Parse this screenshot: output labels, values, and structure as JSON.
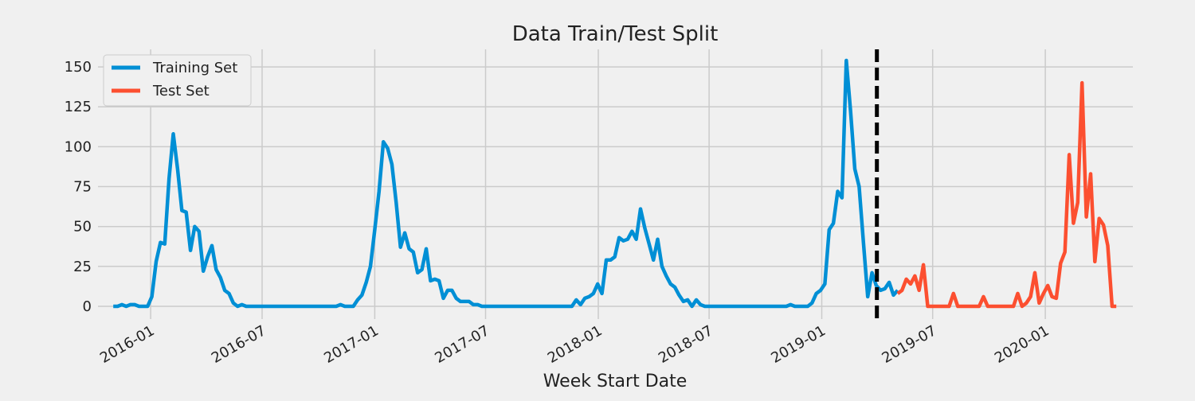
{
  "chart_data": {
    "type": "line",
    "title": "Data Train/Test Split",
    "xlabel": "Week Start Date",
    "ylabel": "",
    "x_type": "date",
    "xlim": [
      "2015-10-07",
      "2020-05-23"
    ],
    "ylim": [
      -8,
      161
    ],
    "grid": true,
    "legend_position": "top-left",
    "x_ticks": [
      {
        "date": "2016-01-01",
        "label": "2016-01"
      },
      {
        "date": "2016-07-01",
        "label": "2016-07"
      },
      {
        "date": "2017-01-01",
        "label": "2017-01"
      },
      {
        "date": "2017-07-01",
        "label": "2017-07"
      },
      {
        "date": "2018-01-01",
        "label": "2018-01"
      },
      {
        "date": "2018-07-01",
        "label": "2018-07"
      },
      {
        "date": "2019-01-01",
        "label": "2019-01"
      },
      {
        "date": "2019-07-01",
        "label": "2019-07"
      },
      {
        "date": "2020-01-01",
        "label": "2020-01"
      }
    ],
    "y_ticks": [
      0,
      25,
      50,
      75,
      100,
      125,
      150
    ],
    "split_date": "2019-04-01",
    "series": [
      {
        "name": "Training Set",
        "color": "#008fd5",
        "points": [
          [
            "2015-11-01",
            0
          ],
          [
            "2015-11-08",
            0
          ],
          [
            "2015-11-15",
            1
          ],
          [
            "2015-11-22",
            0
          ],
          [
            "2015-11-29",
            1
          ],
          [
            "2015-12-06",
            1
          ],
          [
            "2015-12-13",
            0
          ],
          [
            "2015-12-20",
            0
          ],
          [
            "2015-12-27",
            0
          ],
          [
            "2016-01-03",
            6
          ],
          [
            "2016-01-10",
            28
          ],
          [
            "2016-01-17",
            40
          ],
          [
            "2016-01-24",
            39
          ],
          [
            "2016-01-31",
            80
          ],
          [
            "2016-02-07",
            108
          ],
          [
            "2016-02-14",
            86
          ],
          [
            "2016-02-21",
            60
          ],
          [
            "2016-02-28",
            59
          ],
          [
            "2016-03-06",
            35
          ],
          [
            "2016-03-13",
            50
          ],
          [
            "2016-03-20",
            47
          ],
          [
            "2016-03-27",
            22
          ],
          [
            "2016-04-03",
            31
          ],
          [
            "2016-04-10",
            38
          ],
          [
            "2016-04-17",
            23
          ],
          [
            "2016-04-24",
            18
          ],
          [
            "2016-05-01",
            10
          ],
          [
            "2016-05-08",
            8
          ],
          [
            "2016-05-15",
            2
          ],
          [
            "2016-05-22",
            0
          ],
          [
            "2016-05-29",
            1
          ],
          [
            "2016-06-05",
            0
          ],
          [
            "2016-06-12",
            0
          ],
          [
            "2016-07-17",
            0
          ],
          [
            "2016-08-21",
            0
          ],
          [
            "2016-09-25",
            0
          ],
          [
            "2016-10-30",
            0
          ],
          [
            "2016-11-06",
            1
          ],
          [
            "2016-11-13",
            0
          ],
          [
            "2016-11-20",
            0
          ],
          [
            "2016-11-27",
            0
          ],
          [
            "2016-12-04",
            4
          ],
          [
            "2016-12-11",
            7
          ],
          [
            "2016-12-18",
            15
          ],
          [
            "2016-12-25",
            25
          ],
          [
            "2017-01-01",
            48
          ],
          [
            "2017-01-08",
            72
          ],
          [
            "2017-01-15",
            103
          ],
          [
            "2017-01-22",
            99
          ],
          [
            "2017-01-29",
            89
          ],
          [
            "2017-02-05",
            65
          ],
          [
            "2017-02-12",
            37
          ],
          [
            "2017-02-19",
            46
          ],
          [
            "2017-02-26",
            36
          ],
          [
            "2017-03-05",
            34
          ],
          [
            "2017-03-12",
            21
          ],
          [
            "2017-03-19",
            23
          ],
          [
            "2017-03-26",
            36
          ],
          [
            "2017-04-02",
            16
          ],
          [
            "2017-04-09",
            17
          ],
          [
            "2017-04-16",
            16
          ],
          [
            "2017-04-23",
            5
          ],
          [
            "2017-04-30",
            10
          ],
          [
            "2017-05-07",
            10
          ],
          [
            "2017-05-14",
            5
          ],
          [
            "2017-05-21",
            3
          ],
          [
            "2017-05-28",
            3
          ],
          [
            "2017-06-04",
            3
          ],
          [
            "2017-06-11",
            1
          ],
          [
            "2017-06-18",
            1
          ],
          [
            "2017-06-25",
            0
          ],
          [
            "2017-07-30",
            0
          ],
          [
            "2017-09-03",
            0
          ],
          [
            "2017-10-08",
            0
          ],
          [
            "2017-11-05",
            0
          ],
          [
            "2017-11-19",
            0
          ],
          [
            "2017-11-26",
            4
          ],
          [
            "2017-12-03",
            1
          ],
          [
            "2017-12-10",
            5
          ],
          [
            "2017-12-17",
            6
          ],
          [
            "2017-12-24",
            8
          ],
          [
            "2017-12-31",
            14
          ],
          [
            "2018-01-07",
            8
          ],
          [
            "2018-01-14",
            29
          ],
          [
            "2018-01-21",
            29
          ],
          [
            "2018-01-28",
            31
          ],
          [
            "2018-02-04",
            43
          ],
          [
            "2018-02-11",
            41
          ],
          [
            "2018-02-18",
            42
          ],
          [
            "2018-02-25",
            47
          ],
          [
            "2018-03-04",
            42
          ],
          [
            "2018-03-11",
            61
          ],
          [
            "2018-03-18",
            49
          ],
          [
            "2018-03-25",
            39
          ],
          [
            "2018-04-01",
            29
          ],
          [
            "2018-04-08",
            42
          ],
          [
            "2018-04-15",
            25
          ],
          [
            "2018-04-22",
            19
          ],
          [
            "2018-04-29",
            14
          ],
          [
            "2018-05-06",
            12
          ],
          [
            "2018-05-13",
            7
          ],
          [
            "2018-05-20",
            3
          ],
          [
            "2018-05-27",
            4
          ],
          [
            "2018-06-03",
            0
          ],
          [
            "2018-06-10",
            4
          ],
          [
            "2018-06-17",
            1
          ],
          [
            "2018-06-24",
            0
          ],
          [
            "2018-07-29",
            0
          ],
          [
            "2018-09-02",
            0
          ],
          [
            "2018-10-07",
            0
          ],
          [
            "2018-11-04",
            0
          ],
          [
            "2018-11-11",
            1
          ],
          [
            "2018-11-18",
            0
          ],
          [
            "2018-11-25",
            0
          ],
          [
            "2018-12-02",
            0
          ],
          [
            "2018-12-09",
            0
          ],
          [
            "2018-12-16",
            2
          ],
          [
            "2018-12-23",
            8
          ],
          [
            "2018-12-30",
            10
          ],
          [
            "2019-01-06",
            14
          ],
          [
            "2019-01-13",
            48
          ],
          [
            "2019-01-20",
            52
          ],
          [
            "2019-01-27",
            72
          ],
          [
            "2019-02-03",
            68
          ],
          [
            "2019-02-10",
            154
          ],
          [
            "2019-02-17",
            122
          ],
          [
            "2019-02-24",
            86
          ],
          [
            "2019-03-03",
            75
          ],
          [
            "2019-03-10",
            40
          ],
          [
            "2019-03-17",
            6
          ],
          [
            "2019-03-24",
            21
          ],
          [
            "2019-03-31",
            13
          ],
          [
            "2019-04-07",
            10
          ],
          [
            "2019-04-14",
            11
          ],
          [
            "2019-04-21",
            15
          ],
          [
            "2019-04-28",
            7
          ],
          [
            "2019-05-05",
            10
          ]
        ]
      },
      {
        "name": "Test Set",
        "color": "#fc4f30",
        "points": [
          [
            "2019-05-05",
            8
          ],
          [
            "2019-05-12",
            10
          ],
          [
            "2019-05-19",
            17
          ],
          [
            "2019-05-26",
            14
          ],
          [
            "2019-06-02",
            19
          ],
          [
            "2019-06-09",
            10
          ],
          [
            "2019-06-16",
            26
          ],
          [
            "2019-06-23",
            0
          ],
          [
            "2019-06-30",
            0
          ],
          [
            "2019-07-07",
            0
          ],
          [
            "2019-07-14",
            0
          ],
          [
            "2019-07-21",
            0
          ],
          [
            "2019-07-28",
            0
          ],
          [
            "2019-08-04",
            8
          ],
          [
            "2019-08-11",
            0
          ],
          [
            "2019-08-18",
            0
          ],
          [
            "2019-08-25",
            0
          ],
          [
            "2019-09-01",
            0
          ],
          [
            "2019-09-08",
            0
          ],
          [
            "2019-09-15",
            0
          ],
          [
            "2019-09-22",
            6
          ],
          [
            "2019-09-29",
            0
          ],
          [
            "2019-10-06",
            0
          ],
          [
            "2019-10-13",
            0
          ],
          [
            "2019-10-20",
            0
          ],
          [
            "2019-10-27",
            0
          ],
          [
            "2019-11-03",
            0
          ],
          [
            "2019-11-10",
            0
          ],
          [
            "2019-11-17",
            8
          ],
          [
            "2019-11-24",
            0
          ],
          [
            "2019-12-01",
            2
          ],
          [
            "2019-12-08",
            6
          ],
          [
            "2019-12-15",
            21
          ],
          [
            "2019-12-22",
            2
          ],
          [
            "2019-12-29",
            8
          ],
          [
            "2020-01-05",
            13
          ],
          [
            "2020-01-12",
            6
          ],
          [
            "2020-01-19",
            5
          ],
          [
            "2020-01-26",
            27
          ],
          [
            "2020-02-02",
            34
          ],
          [
            "2020-02-09",
            95
          ],
          [
            "2020-02-16",
            52
          ],
          [
            "2020-02-23",
            65
          ],
          [
            "2020-03-01",
            140
          ],
          [
            "2020-03-08",
            56
          ],
          [
            "2020-03-15",
            83
          ],
          [
            "2020-03-22",
            28
          ],
          [
            "2020-03-29",
            55
          ],
          [
            "2020-04-05",
            51
          ],
          [
            "2020-04-12",
            38
          ],
          [
            "2020-04-19",
            0
          ],
          [
            "2020-04-26",
            0
          ]
        ]
      }
    ]
  }
}
